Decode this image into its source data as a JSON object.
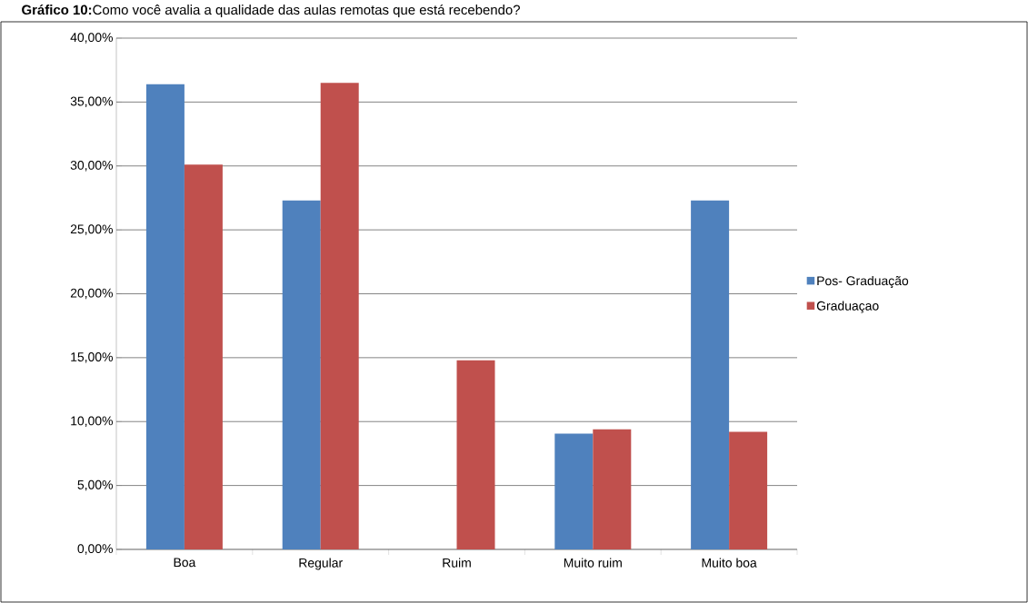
{
  "chart_data": {
    "type": "bar",
    "title": "**Gráfico 10:**Como você avalia a qualidade das aulas remotas que está recebendo?",
    "categories": [
      "Boa",
      "Regular",
      "Ruim",
      "Muito ruim",
      "Muito boa"
    ],
    "series": [
      {
        "name": "Pos- Graduação",
        "color": "#4f81bd",
        "values": [
          36.4,
          27.3,
          0,
          9.05,
          27.3
        ]
      },
      {
        "name": "Graduaçao",
        "color": "#c0504d",
        "values": [
          30.1,
          36.5,
          14.8,
          9.4,
          9.2
        ]
      }
    ],
    "ylim": [
      0,
      40
    ],
    "yticks": [
      {
        "value": 0,
        "label": "0,00%"
      },
      {
        "value": 5,
        "label": "5,00%"
      },
      {
        "value": 10,
        "label": "10,00%"
      },
      {
        "value": 15,
        "label": "15,00%"
      },
      {
        "value": 20,
        "label": "20,00%"
      },
      {
        "value": 25,
        "label": "25,00%"
      },
      {
        "value": 30,
        "label": "30,00%"
      },
      {
        "value": 35,
        "label": "35,00%"
      },
      {
        "value": 40,
        "label": "40,00%"
      }
    ],
    "grid": "y",
    "legend": "right"
  }
}
